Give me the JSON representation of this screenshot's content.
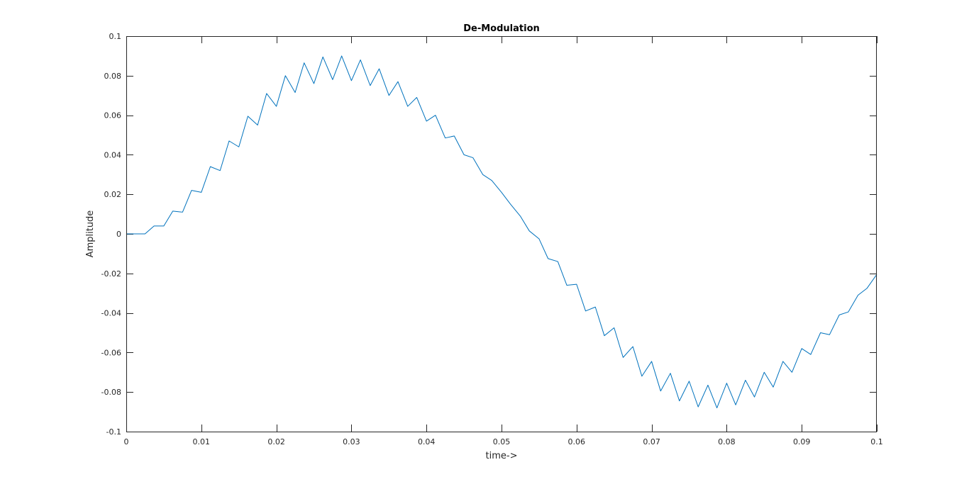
{
  "chart_data": {
    "type": "line",
    "title": "De-Modulation",
    "xlabel": "time->",
    "ylabel": "Amplitude",
    "xlim": [
      0,
      0.1
    ],
    "ylim": [
      -0.1,
      0.1
    ],
    "grid": false,
    "box": true,
    "x_ticks": [
      0,
      0.01,
      0.02,
      0.03,
      0.04,
      0.05,
      0.06,
      0.07,
      0.08,
      0.09,
      0.1
    ],
    "x_tick_labels": [
      "0",
      "0.01",
      "0.02",
      "0.03",
      "0.04",
      "0.05",
      "0.06",
      "0.07",
      "0.08",
      "0.09",
      "0.1"
    ],
    "y_ticks": [
      -0.1,
      -0.08,
      -0.06,
      -0.04,
      -0.02,
      0,
      0.02,
      0.04,
      0.06,
      0.08,
      0.1
    ],
    "y_tick_labels": [
      "-0.1",
      "-0.08",
      "-0.06",
      "-0.04",
      "-0.02",
      "0",
      "0.02",
      "0.04",
      "0.06",
      "0.08",
      "0.1"
    ],
    "series": [
      {
        "color": "#0072BD",
        "x": [
          0,
          0.0025,
          0.0037,
          0.005,
          0.0062,
          0.0075,
          0.0087,
          0.01,
          0.0112,
          0.0125,
          0.0137,
          0.015,
          0.0162,
          0.0175,
          0.0187,
          0.02,
          0.0212,
          0.0225,
          0.0237,
          0.025,
          0.0262,
          0.0275,
          0.0287,
          0.03,
          0.0312,
          0.0325,
          0.0337,
          0.035,
          0.0362,
          0.0375,
          0.0387,
          0.04,
          0.0412,
          0.0425,
          0.0437,
          0.045,
          0.0462,
          0.0475,
          0.0487,
          0.05,
          0.0512,
          0.0525,
          0.0537,
          0.055,
          0.0562,
          0.0575,
          0.0587,
          0.06,
          0.0612,
          0.0625,
          0.0637,
          0.065,
          0.0662,
          0.0675,
          0.0687,
          0.07,
          0.0712,
          0.0725,
          0.0737,
          0.075,
          0.0762,
          0.0775,
          0.0787,
          0.08,
          0.0812,
          0.0825,
          0.0837,
          0.085,
          0.0862,
          0.0875,
          0.0887,
          0.09,
          0.0912,
          0.0925,
          0.0937,
          0.095,
          0.0962,
          0.0975,
          0.0987,
          0.1
        ],
        "y": [
          0,
          0,
          0.004,
          0.004,
          0.0115,
          0.011,
          0.022,
          0.021,
          0.034,
          0.032,
          0.047,
          0.044,
          0.0595,
          0.055,
          0.071,
          0.0645,
          0.08,
          0.0715,
          0.0865,
          0.076,
          0.0895,
          0.078,
          0.09,
          0.0775,
          0.088,
          0.075,
          0.0835,
          0.07,
          0.077,
          0.0645,
          0.069,
          0.057,
          0.06,
          0.0485,
          0.0495,
          0.04,
          0.0385,
          0.03,
          0.027,
          0.021,
          0.015,
          0.009,
          0.0015,
          -0.0025,
          -0.0125,
          -0.014,
          -0.026,
          -0.0255,
          -0.039,
          -0.037,
          -0.0515,
          -0.0475,
          -0.0625,
          -0.057,
          -0.072,
          -0.0645,
          -0.0795,
          -0.0705,
          -0.0845,
          -0.0745,
          -0.0875,
          -0.0765,
          -0.088,
          -0.0755,
          -0.0865,
          -0.074,
          -0.0825,
          -0.07,
          -0.0775,
          -0.0645,
          -0.07,
          -0.058,
          -0.061,
          -0.05,
          -0.051,
          -0.041,
          -0.0395,
          -0.031,
          -0.0275,
          -0.0205
        ]
      }
    ]
  }
}
